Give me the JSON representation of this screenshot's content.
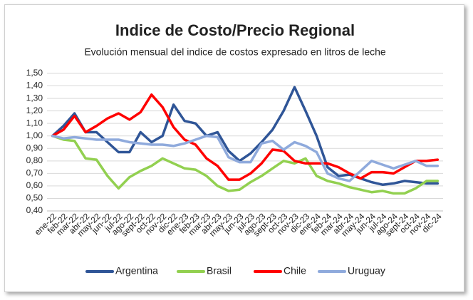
{
  "chart_data": {
    "type": "line",
    "title": "Indice de Costo/Precio Regional",
    "subtitle": "Evolución mensual del indice de costos expresado en litros de leche",
    "categories": [
      "ene-22",
      "feb-22",
      "mar-22",
      "abr-22",
      "may-22",
      "jun-22",
      "jul-22",
      "ago-22",
      "sept-22",
      "oct-22",
      "nov-22",
      "dic-22",
      "ene-23",
      "feb-23",
      "mar-23",
      "abr-23",
      "may-23",
      "jun-23",
      "jul-23",
      "ago-23",
      "sept-23",
      "oct-23",
      "nov-23",
      "dic-23",
      "ene-24",
      "feb-24",
      "mar-24",
      "abr-24",
      "may-24",
      "jun-24",
      "jul-24",
      "ago-24",
      "sept-24",
      "oct-24",
      "nov-24",
      "dic-24"
    ],
    "series": [
      {
        "name": "Argentina",
        "color": "#2f5597",
        "values": [
          1.0,
          1.08,
          1.18,
          1.03,
          1.03,
          0.95,
          0.87,
          0.87,
          1.03,
          0.95,
          1.0,
          1.25,
          1.12,
          1.1,
          1.0,
          1.03,
          0.88,
          0.8,
          0.86,
          0.95,
          1.05,
          1.2,
          1.39,
          1.2,
          1.0,
          0.75,
          0.68,
          0.69,
          0.66,
          0.63,
          0.61,
          0.62,
          0.64,
          0.63,
          0.62,
          0.62
        ]
      },
      {
        "name": "Brasil",
        "color": "#92d050",
        "values": [
          1.0,
          0.97,
          0.96,
          0.82,
          0.81,
          0.68,
          0.58,
          0.67,
          0.72,
          0.76,
          0.82,
          0.78,
          0.74,
          0.73,
          0.68,
          0.6,
          0.56,
          0.57,
          0.63,
          0.68,
          0.74,
          0.8,
          0.78,
          0.82,
          0.68,
          0.64,
          0.62,
          0.59,
          0.57,
          0.55,
          0.56,
          0.54,
          0.54,
          0.58,
          0.64,
          0.64
        ]
      },
      {
        "name": "Chile",
        "color": "#ff0000",
        "values": [
          1.0,
          1.05,
          1.16,
          1.03,
          1.08,
          1.14,
          1.18,
          1.13,
          1.19,
          1.33,
          1.23,
          1.07,
          0.97,
          0.93,
          0.82,
          0.76,
          0.65,
          0.65,
          0.7,
          0.78,
          0.89,
          0.88,
          0.8,
          0.78,
          0.78,
          0.78,
          0.75,
          0.7,
          0.66,
          0.71,
          0.71,
          0.7,
          0.75,
          0.8,
          0.8,
          0.81
        ]
      },
      {
        "name": "Uruguay",
        "color": "#8faadc",
        "values": [
          1.0,
          0.98,
          0.99,
          0.98,
          0.97,
          0.97,
          0.97,
          0.95,
          0.94,
          0.93,
          0.93,
          0.92,
          0.94,
          0.97,
          1.0,
          0.99,
          0.83,
          0.79,
          0.79,
          0.94,
          0.96,
          0.89,
          0.95,
          0.92,
          0.87,
          0.7,
          0.66,
          0.64,
          0.72,
          0.8,
          0.77,
          0.74,
          0.77,
          0.8,
          0.76,
          0.76
        ]
      }
    ],
    "ylim": [
      0.4,
      1.5
    ],
    "yticks": [
      {
        "value": 0.4,
        "label": "0,40"
      },
      {
        "value": 0.5,
        "label": "0,50"
      },
      {
        "value": 0.6,
        "label": "0,60"
      },
      {
        "value": 0.7,
        "label": "0,70"
      },
      {
        "value": 0.8,
        "label": "0,80"
      },
      {
        "value": 0.9,
        "label": "0,90"
      },
      {
        "value": 1.0,
        "label": "1,00"
      },
      {
        "value": 1.1,
        "label": "1,10"
      },
      {
        "value": 1.2,
        "label": "1,20"
      },
      {
        "value": 1.3,
        "label": "1,30"
      },
      {
        "value": 1.4,
        "label": "1,40"
      },
      {
        "value": 1.5,
        "label": "1,50"
      }
    ],
    "grid": true,
    "legend": "bottom"
  }
}
